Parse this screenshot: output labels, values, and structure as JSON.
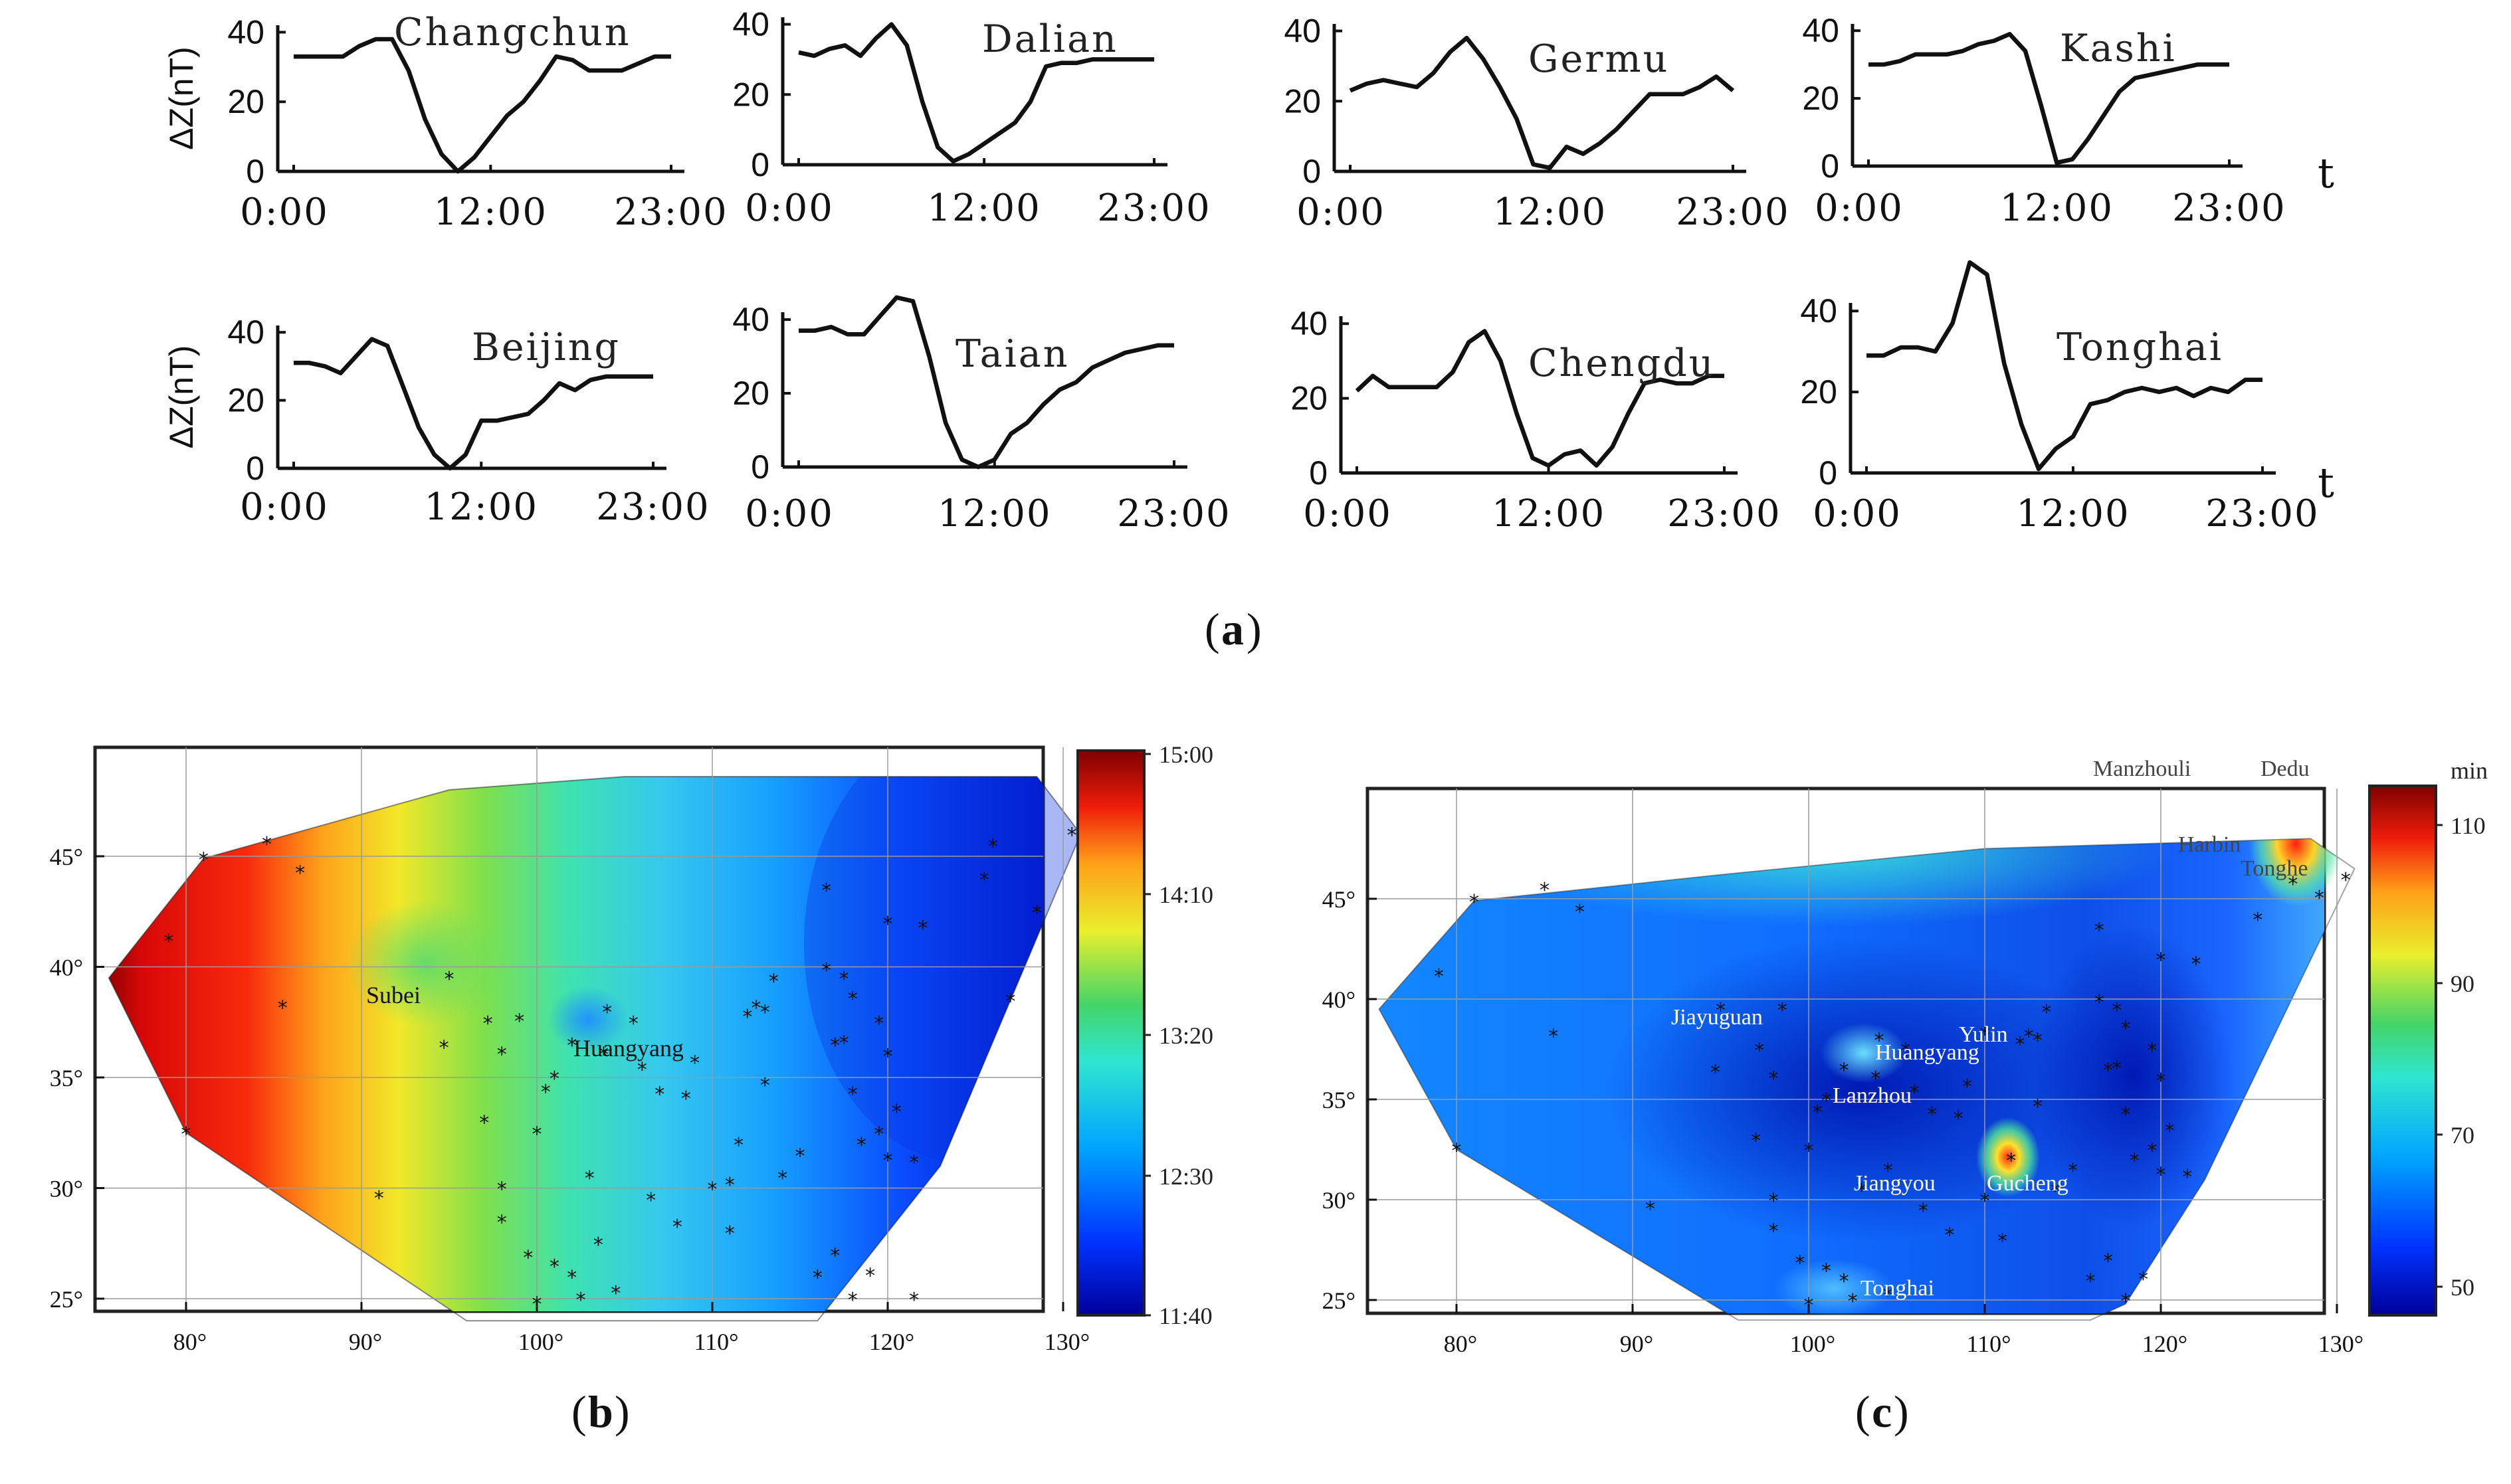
{
  "figure": {
    "caption_a": "a",
    "caption_b": "b",
    "caption_c": "c",
    "t_label": "t"
  },
  "chart_data": [
    {
      "type": "line",
      "title": "Changchun",
      "ylabel": "ΔZ(nT)",
      "yticks": [
        "0",
        "20",
        "40"
      ],
      "xticks": [
        "0:00",
        "12:00",
        "23:00"
      ],
      "xlim": [
        0,
        23
      ],
      "ylim": [
        0,
        42
      ],
      "x": [
        0,
        1,
        2,
        3,
        4,
        5,
        6,
        7,
        8,
        9,
        10,
        11,
        12,
        13,
        14,
        15,
        16,
        17,
        18,
        19,
        20,
        21,
        22,
        23
      ],
      "values": [
        33,
        33,
        33,
        33,
        36,
        38,
        38,
        29,
        15,
        5,
        0,
        4,
        10,
        16,
        20,
        26,
        33,
        32,
        29,
        29,
        29,
        31,
        33,
        33
      ]
    },
    {
      "type": "line",
      "title": "Dalian",
      "ylabel": "",
      "yticks": [
        "0",
        "20",
        "40"
      ],
      "xticks": [
        "0:00",
        "12:00",
        "23:00"
      ],
      "xlim": [
        0,
        23
      ],
      "ylim": [
        0,
        42
      ],
      "x": [
        0,
        1,
        2,
        3,
        4,
        5,
        6,
        7,
        8,
        9,
        10,
        11,
        12,
        13,
        14,
        15,
        16,
        17,
        18,
        19,
        20,
        21,
        22,
        23
      ],
      "values": [
        32,
        31,
        33,
        34,
        31,
        36,
        40,
        34,
        18,
        5,
        1,
        3,
        6,
        9,
        12,
        18,
        28,
        29,
        29,
        30,
        30,
        30,
        30,
        30
      ]
    },
    {
      "type": "line",
      "title": "Germu",
      "ylabel": "",
      "yticks": [
        "0",
        "20",
        "40"
      ],
      "xticks": [
        "0:00",
        "12:00",
        "23:00"
      ],
      "xlim": [
        0,
        23
      ],
      "ylim": [
        0,
        42
      ],
      "x": [
        0,
        1,
        2,
        3,
        4,
        5,
        6,
        7,
        8,
        9,
        10,
        11,
        12,
        13,
        14,
        15,
        16,
        17,
        18,
        19,
        20,
        21,
        22,
        23
      ],
      "values": [
        23,
        25,
        26,
        25,
        24,
        28,
        34,
        38,
        32,
        24,
        15,
        2,
        1,
        7,
        5,
        8,
        12,
        17,
        22,
        22,
        22,
        24,
        27,
        23
      ]
    },
    {
      "type": "line",
      "title": "Kashi",
      "ylabel": "",
      "yticks": [
        "0",
        "20",
        "40"
      ],
      "xticks": [
        "0:00",
        "12:00",
        "23:00"
      ],
      "xlim": [
        0,
        23
      ],
      "ylim": [
        0,
        42
      ],
      "x": [
        0,
        1,
        2,
        3,
        4,
        5,
        6,
        7,
        8,
        9,
        10,
        11,
        12,
        13,
        14,
        15,
        16,
        17,
        18,
        19,
        20,
        21,
        22,
        23
      ],
      "values": [
        30,
        30,
        31,
        33,
        33,
        33,
        34,
        36,
        37,
        39,
        34,
        18,
        1,
        2,
        8,
        15,
        22,
        26,
        27,
        28,
        29,
        30,
        30,
        30
      ]
    },
    {
      "type": "line",
      "title": "Beijing",
      "ylabel": "ΔZ(nT)",
      "yticks": [
        "0",
        "20",
        "40"
      ],
      "xticks": [
        "0:00",
        "12:00",
        "23:00"
      ],
      "xlim": [
        0,
        23
      ],
      "ylim": [
        0,
        42
      ],
      "x": [
        0,
        1,
        2,
        3,
        4,
        5,
        6,
        7,
        8,
        9,
        10,
        11,
        12,
        13,
        14,
        15,
        16,
        17,
        18,
        19,
        20,
        21,
        22,
        23
      ],
      "values": [
        31,
        31,
        30,
        28,
        33,
        38,
        36,
        24,
        12,
        4,
        0,
        4,
        14,
        14,
        15,
        16,
        20,
        25,
        23,
        26,
        27,
        27,
        27,
        27
      ]
    },
    {
      "type": "line",
      "title": "Taian",
      "ylabel": "",
      "yticks": [
        "0",
        "20",
        "40"
      ],
      "xticks": [
        "0:00",
        "12:00",
        "23:00"
      ],
      "xlim": [
        0,
        23
      ],
      "ylim": [
        0,
        42
      ],
      "x": [
        0,
        1,
        2,
        3,
        4,
        5,
        6,
        7,
        8,
        9,
        10,
        11,
        12,
        13,
        14,
        15,
        16,
        17,
        18,
        19,
        20,
        21,
        22,
        23
      ],
      "values": [
        37,
        37,
        38,
        36,
        36,
        41,
        46,
        45,
        30,
        12,
        2,
        0,
        2,
        9,
        12,
        17,
        21,
        23,
        27,
        29,
        31,
        32,
        33,
        33
      ]
    },
    {
      "type": "line",
      "title": "Chengdu",
      "ylabel": "",
      "yticks": [
        "0",
        "20",
        "40"
      ],
      "xticks": [
        "0:00",
        "12:00",
        "23:00"
      ],
      "xlim": [
        0,
        23
      ],
      "ylim": [
        0,
        42
      ],
      "x": [
        0,
        1,
        2,
        3,
        4,
        5,
        6,
        7,
        8,
        9,
        10,
        11,
        12,
        13,
        14,
        15,
        16,
        17,
        18,
        19,
        20,
        21,
        22,
        23
      ],
      "values": [
        22,
        26,
        23,
        23,
        23,
        23,
        27,
        35,
        38,
        30,
        16,
        4,
        2,
        5,
        6,
        2,
        7,
        16,
        24,
        25,
        24,
        24,
        26,
        26
      ]
    },
    {
      "type": "line",
      "title": "Tonghai",
      "ylabel": "",
      "yticks": [
        "0",
        "20",
        "40"
      ],
      "xticks": [
        "0:00",
        "12:00",
        "23:00"
      ],
      "xlim": [
        0,
        23
      ],
      "ylim": [
        0,
        42
      ],
      "x": [
        0,
        1,
        2,
        3,
        4,
        5,
        6,
        7,
        8,
        9,
        10,
        11,
        12,
        13,
        14,
        15,
        16,
        17,
        18,
        19,
        20,
        21,
        22,
        23
      ],
      "values": [
        29,
        29,
        31,
        31,
        30,
        37,
        52,
        49,
        27,
        12,
        1,
        6,
        9,
        17,
        18,
        20,
        21,
        20,
        21,
        19,
        21,
        20,
        23,
        23
      ]
    },
    {
      "type": "heatmap",
      "title": "",
      "xticks": [
        "80°",
        "90°",
        "100°",
        "110°",
        "120°",
        "130°"
      ],
      "yticks": [
        "25°",
        "30°",
        "35°",
        "40°",
        "45°"
      ],
      "xlim": [
        75,
        131
      ],
      "ylim": [
        24,
        48
      ],
      "colorbar_ticks": [
        "15:00",
        "14:10",
        "13:20",
        "12:30",
        "11:40"
      ],
      "labels": [
        "Subei",
        "Huangyang"
      ],
      "stations_lonlat": [
        [
          79,
          41.2
        ],
        [
          81,
          44.9
        ],
        [
          84.6,
          45.6
        ],
        [
          86.5,
          44.3
        ],
        [
          85.5,
          38.2
        ],
        [
          80,
          32.5
        ],
        [
          91,
          29.6
        ],
        [
          95,
          39.5
        ],
        [
          94.7,
          36.4
        ],
        [
          97.2,
          37.5
        ],
        [
          98,
          36.1
        ],
        [
          97,
          33
        ],
        [
          98,
          30
        ],
        [
          99,
          37.6
        ],
        [
          100.5,
          34.4
        ],
        [
          100,
          32.5
        ],
        [
          98,
          28.5
        ],
        [
          99.5,
          26.9
        ],
        [
          101,
          26.5
        ],
        [
          100,
          24.8
        ],
        [
          102,
          26
        ],
        [
          102.5,
          25
        ],
        [
          103,
          30.5
        ],
        [
          103.8,
          36.1
        ],
        [
          102,
          36.5
        ],
        [
          101,
          35
        ],
        [
          104,
          38
        ],
        [
          105.5,
          37.5
        ],
        [
          107,
          34.3
        ],
        [
          108.5,
          34.1
        ],
        [
          106,
          35.4
        ],
        [
          109,
          35.7
        ],
        [
          112,
          37.8
        ],
        [
          113,
          38
        ],
        [
          113.5,
          39.4
        ],
        [
          112.5,
          38.2
        ],
        [
          111.5,
          32
        ],
        [
          111,
          28
        ],
        [
          110,
          30
        ],
        [
          111,
          30.2
        ],
        [
          113,
          34.7
        ],
        [
          114,
          30.5
        ],
        [
          115,
          31.5
        ],
        [
          116.5,
          39.9
        ],
        [
          117.5,
          39.5
        ],
        [
          118,
          38.6
        ],
        [
          117.5,
          36.6
        ],
        [
          117,
          36.5
        ],
        [
          118,
          34.3
        ],
        [
          118.5,
          32
        ],
        [
          119.5,
          32.5
        ],
        [
          120,
          31.3
        ],
        [
          121.5,
          31.2
        ],
        [
          120.5,
          33.5
        ],
        [
          120,
          36
        ],
        [
          119.5,
          37.5
        ],
        [
          117,
          27
        ],
        [
          116,
          26
        ],
        [
          118,
          25
        ],
        [
          119,
          26.1
        ],
        [
          121.5,
          25
        ],
        [
          116.5,
          43.5
        ],
        [
          120,
          42
        ],
        [
          122,
          41.8
        ],
        [
          125.5,
          44
        ],
        [
          126,
          45.5
        ],
        [
          128.5,
          42.5
        ],
        [
          130.5,
          46
        ],
        [
          127,
          38.5
        ],
        [
          104.5,
          25.3
        ],
        [
          108,
          28.3
        ],
        [
          103.5,
          27.5
        ],
        [
          106.5,
          29.5
        ]
      ]
    },
    {
      "type": "heatmap",
      "title": "",
      "xticks": [
        "80°",
        "90°",
        "100°",
        "110°",
        "120°",
        "130°"
      ],
      "yticks": [
        "25°",
        "30°",
        "35°",
        "40°",
        "45°"
      ],
      "xlim": [
        75,
        131
      ],
      "ylim": [
        24,
        48
      ],
      "colorbar_unit": "min",
      "colorbar_ticks": [
        "110",
        "90",
        "70",
        "50"
      ],
      "labels_outside": [
        "Manzhouli",
        "Dedu"
      ],
      "labels": [
        "Harbin",
        "Tonghe",
        "Jiayuguan",
        "Huangyang",
        "Yulin",
        "Lanzhou",
        "Jiangyou",
        "Gucheng",
        "Tonghai"
      ],
      "stations_lonlat": [
        [
          79,
          41.2
        ],
        [
          81,
          44.9
        ],
        [
          85,
          45.5
        ],
        [
          87,
          44.4
        ],
        [
          85.5,
          38.2
        ],
        [
          80,
          32.5
        ],
        [
          91,
          29.6
        ],
        [
          95,
          39.5
        ],
        [
          94.7,
          36.4
        ],
        [
          97.2,
          37.5
        ],
        [
          98,
          36.1
        ],
        [
          97,
          33
        ],
        [
          98,
          30
        ],
        [
          98.5,
          39.5
        ],
        [
          100.5,
          34.4
        ],
        [
          100,
          32.5
        ],
        [
          98,
          28.5
        ],
        [
          99.5,
          26.9
        ],
        [
          101,
          26.5
        ],
        [
          100,
          24.8
        ],
        [
          102,
          26
        ],
        [
          102.5,
          25
        ],
        [
          103,
          30.5
        ],
        [
          103.8,
          36.1
        ],
        [
          102,
          36.5
        ],
        [
          101,
          35
        ],
        [
          104,
          38
        ],
        [
          105.5,
          37.5
        ],
        [
          107,
          34.3
        ],
        [
          108.5,
          34.1
        ],
        [
          106,
          35.4
        ],
        [
          109,
          35.7
        ],
        [
          110,
          38.3
        ],
        [
          112,
          37.8
        ],
        [
          113,
          38
        ],
        [
          113.5,
          39.4
        ],
        [
          112.5,
          38.2
        ],
        [
          111.5,
          32
        ],
        [
          111,
          28
        ],
        [
          110,
          30
        ],
        [
          113,
          34.7
        ],
        [
          114,
          30.5
        ],
        [
          115,
          31.5
        ],
        [
          116.5,
          39.9
        ],
        [
          117.5,
          39.5
        ],
        [
          118,
          38.6
        ],
        [
          117.5,
          36.6
        ],
        [
          117,
          36.5
        ],
        [
          118,
          34.3
        ],
        [
          118.5,
          32
        ],
        [
          119.5,
          32.5
        ],
        [
          120,
          31.3
        ],
        [
          121.5,
          31.2
        ],
        [
          120.5,
          33.5
        ],
        [
          120,
          36
        ],
        [
          119.5,
          37.5
        ],
        [
          117,
          27
        ],
        [
          116,
          26
        ],
        [
          118,
          25
        ],
        [
          119,
          26.1
        ],
        [
          116.5,
          43.5
        ],
        [
          120,
          42
        ],
        [
          122,
          41.8
        ],
        [
          125.5,
          44
        ],
        [
          127.5,
          45.8
        ],
        [
          129,
          45.1
        ],
        [
          130.5,
          46
        ],
        [
          104.5,
          25.3
        ],
        [
          108,
          28.3
        ],
        [
          106.5,
          29.5
        ],
        [
          104.5,
          31.5
        ]
      ]
    }
  ]
}
